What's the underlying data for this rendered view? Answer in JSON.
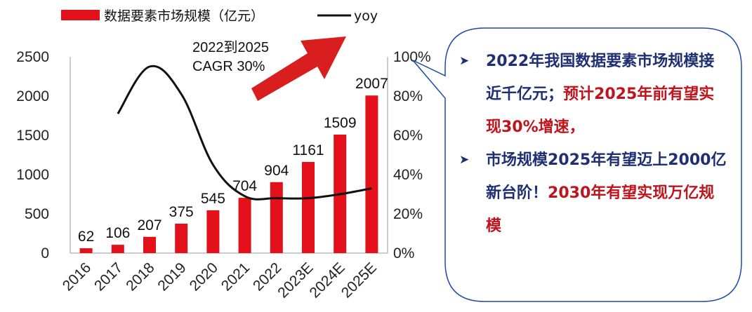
{
  "chart_data": {
    "type": "bar",
    "categories": [
      "2016",
      "2017",
      "2018",
      "2019",
      "2020",
      "2021",
      "2022",
      "2023E",
      "2024E",
      "2025E"
    ],
    "series": [
      {
        "name": "数据要素市场规模（亿元）",
        "type": "bar",
        "axis": "left",
        "color": "#e4111b",
        "values": [
          62,
          106,
          207,
          375,
          545,
          704,
          904,
          1161,
          1509,
          2007
        ]
      },
      {
        "name": "yoy",
        "type": "line",
        "axis": "right",
        "color": "#111111",
        "values": [
          null,
          71,
          95,
          81,
          45,
          29,
          28,
          28,
          30,
          33
        ]
      }
    ],
    "data_labels": [
      "62",
      "106",
      "207",
      "375",
      "545",
      "704",
      "904",
      "1161",
      "1509",
      "2007"
    ],
    "y_ticks": [
      "0",
      "500",
      "1000",
      "1500",
      "2000",
      "2500"
    ],
    "y2_ticks": [
      "0%",
      "20%",
      "40%",
      "60%",
      "80%",
      "100%"
    ],
    "ylim": [
      0,
      2500
    ],
    "y2lim": [
      0,
      100
    ],
    "legend_position": "top",
    "annotation": {
      "line1": "2022到2025",
      "line2": "CAGR 30%",
      "arrow_color": "#d81e1e"
    }
  },
  "callout": {
    "bullet1": {
      "part1": "2022年我国数据要素市场规模接近千亿元；",
      "part2": "预计2025年前有望实现30%增速，"
    },
    "bullet2": {
      "part1": "市场规模2025年有望迈上2000亿新台阶！",
      "part2": "2030年有望实现万亿规模"
    },
    "border_color": "#1f4aa8",
    "bullet_icon": "arrowhead-icon",
    "bullet_glyph": "➤"
  }
}
